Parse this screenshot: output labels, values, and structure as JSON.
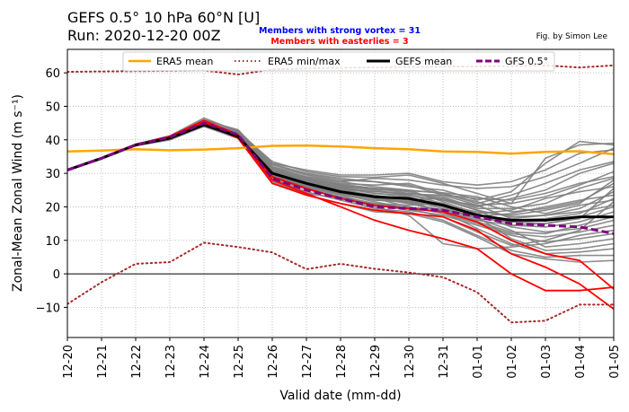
{
  "title_line1": "GEFS 0.5°  10 hPa 60°N [U]",
  "title_line2": "Run: 2020-12-20 00Z",
  "note_strong_vortex": "Members with strong vortex = 31",
  "note_easterlies": "Members with easterlies = 3",
  "credit": "Fig. by Simon Lee",
  "colors": {
    "era5_mean": "#FFA500",
    "era5_minmax": "#A52A2A",
    "gefs_mean": "#000000",
    "gfs": "#800080",
    "members": "#808080",
    "easterly_members": "#FF0000",
    "note_blue": "#0000FF",
    "note_red": "#FF0000"
  },
  "chart_data": {
    "type": "line",
    "xlabel": "Valid date (mm-dd)",
    "ylabel": "Zonal-Mean Zonal Wind (m s⁻¹)",
    "categories": [
      "12-20",
      "12-21",
      "12-22",
      "12-23",
      "12-24",
      "12-25",
      "12-26",
      "12-27",
      "12-28",
      "12-29",
      "12-30",
      "12-31",
      "01-01",
      "01-02",
      "01-03",
      "01-04",
      "01-05"
    ],
    "yticks": [
      -10,
      0,
      10,
      20,
      30,
      40,
      50,
      60
    ],
    "ylim": [
      -19,
      67
    ],
    "grid": true,
    "zero_line": true,
    "legend_position": "top",
    "legend": [
      {
        "label": "ERA5 mean",
        "style": "solid-orange"
      },
      {
        "label": "ERA5 min/max",
        "style": "dotted-brown"
      },
      {
        "label": "GEFS mean",
        "style": "solid-black-thick"
      },
      {
        "label": "GFS 0.5°",
        "style": "dashed-purple"
      }
    ],
    "series": [
      {
        "name": "ERA5 mean",
        "values": [
          36.5,
          36.8,
          37.2,
          36.9,
          37.1,
          37.5,
          38.2,
          38.3,
          38.0,
          37.5,
          37.2,
          36.5,
          36.4,
          35.9,
          36.4,
          36.6,
          35.7
        ]
      },
      {
        "name": "ERA5 min/max",
        "values": [
          60.3,
          60.4,
          60.5,
          60.6,
          60.7,
          59.5,
          61.0,
          61.3,
          61.5,
          61.6,
          61.7,
          61.8,
          61.9,
          62.0,
          62.2,
          61.6,
          62.2
        ]
      },
      {
        "name": "ERA5 min/max",
        "values": [
          -9.0,
          -2.5,
          3.0,
          3.5,
          9.3,
          8.0,
          6.4,
          1.4,
          3.0,
          1.5,
          0.4,
          -1.0,
          -5.5,
          -14.5,
          -14.0,
          -9.2,
          -9.2
        ]
      },
      {
        "name": "GEFS mean",
        "values": [
          31.0,
          34.5,
          38.5,
          40.5,
          44.5,
          41.0,
          30.0,
          27.0,
          24.5,
          23.0,
          22.5,
          20.5,
          17.5,
          16.0,
          16.0,
          17.0,
          17.0
        ]
      },
      {
        "name": "GFS 0.5°",
        "values": [
          31.0,
          34.5,
          38.5,
          40.8,
          45.0,
          41.5,
          28.5,
          25.0,
          22.5,
          20.0,
          19.5,
          19.0,
          17.0,
          15.0,
          14.5,
          14.0,
          12.0
        ]
      }
    ],
    "members": [
      [
        31.2,
        34.6,
        38.4,
        40.9,
        45.4,
        42.4,
        33.5,
        30.5,
        29.0,
        28.8,
        29.5,
        27.0,
        24.0,
        21.0,
        34.5,
        38.5,
        39.0
      ],
      [
        31.0,
        34.4,
        38.5,
        40.2,
        44.6,
        41.2,
        32.5,
        29.8,
        28.0,
        27.5,
        26.0,
        25.0,
        22.0,
        24.5,
        33.0,
        39.5,
        38.5
      ],
      [
        31.1,
        34.5,
        38.6,
        40.6,
        45.1,
        41.8,
        31.5,
        29.0,
        27.5,
        28.5,
        28.0,
        26.5,
        25.5,
        26.0,
        29.0,
        33.0,
        37.5
      ],
      [
        30.9,
        34.3,
        38.2,
        40.0,
        44.0,
        40.8,
        30.5,
        28.5,
        26.5,
        25.5,
        25.0,
        24.0,
        21.0,
        23.5,
        27.0,
        31.0,
        33.5
      ],
      [
        31.0,
        34.5,
        38.7,
        41.2,
        46.5,
        42.5,
        31.0,
        27.5,
        26.0,
        25.5,
        24.0,
        22.5,
        20.0,
        22.5,
        25.0,
        30.0,
        33.0
      ],
      [
        31.1,
        34.6,
        38.5,
        40.8,
        45.0,
        41.0,
        30.0,
        28.0,
        25.5,
        24.0,
        23.5,
        22.0,
        20.5,
        21.0,
        23.0,
        26.5,
        30.5
      ],
      [
        31.0,
        34.4,
        38.3,
        40.3,
        44.3,
        40.5,
        29.5,
        27.0,
        25.5,
        24.5,
        24.0,
        23.0,
        19.5,
        19.5,
        21.0,
        25.5,
        28.5
      ],
      [
        30.9,
        34.5,
        38.4,
        40.5,
        44.8,
        41.6,
        29.0,
        26.0,
        24.0,
        22.0,
        21.5,
        20.5,
        18.5,
        17.5,
        19.0,
        21.0,
        28.0
      ],
      [
        31.0,
        34.5,
        38.6,
        41.0,
        45.8,
        43.0,
        31.8,
        28.8,
        27.0,
        26.5,
        27.0,
        24.0,
        21.5,
        18.5,
        19.5,
        21.5,
        27.0
      ],
      [
        31.1,
        34.6,
        38.5,
        40.7,
        44.9,
        40.6,
        28.5,
        26.5,
        25.0,
        23.0,
        22.0,
        22.5,
        19.0,
        17.0,
        17.5,
        19.5,
        24.5
      ],
      [
        31.0,
        34.5,
        38.4,
        40.4,
        44.5,
        41.3,
        28.0,
        25.5,
        23.0,
        21.0,
        20.5,
        21.0,
        17.5,
        16.0,
        16.5,
        18.0,
        22.5
      ],
      [
        30.9,
        34.4,
        38.3,
        40.1,
        44.1,
        40.9,
        29.8,
        27.8,
        26.0,
        24.0,
        23.0,
        20.0,
        16.5,
        15.5,
        15.0,
        17.0,
        20.0
      ],
      [
        31.0,
        34.5,
        38.5,
        40.6,
        44.7,
        41.4,
        30.8,
        28.2,
        25.8,
        22.5,
        21.0,
        19.0,
        16.0,
        14.5,
        14.0,
        15.5,
        18.5
      ],
      [
        31.1,
        34.5,
        38.6,
        40.9,
        45.2,
        42.0,
        32.0,
        29.5,
        27.5,
        26.0,
        25.0,
        21.5,
        18.0,
        14.0,
        12.5,
        13.5,
        16.0
      ],
      [
        31.0,
        34.5,
        38.4,
        40.5,
        44.6,
        41.1,
        29.2,
        26.8,
        24.5,
        22.5,
        20.0,
        18.0,
        15.0,
        12.0,
        11.0,
        12.5,
        14.5
      ],
      [
        30.9,
        34.4,
        38.2,
        40.2,
        44.2,
        40.7,
        28.8,
        25.8,
        23.5,
        20.5,
        19.0,
        17.5,
        14.5,
        11.5,
        9.5,
        10.5,
        12.0
      ],
      [
        31.0,
        34.5,
        38.5,
        40.6,
        44.8,
        41.5,
        30.2,
        27.2,
        25.0,
        23.5,
        22.0,
        19.5,
        16.5,
        13.0,
        8.0,
        9.0,
        10.5
      ],
      [
        31.1,
        34.6,
        38.6,
        40.8,
        45.0,
        41.7,
        31.2,
        28.6,
        26.5,
        25.0,
        23.5,
        21.0,
        17.0,
        10.5,
        7.0,
        7.5,
        9.0
      ],
      [
        31.0,
        34.5,
        38.5,
        40.5,
        44.6,
        41.2,
        29.6,
        27.4,
        24.8,
        22.8,
        21.5,
        18.5,
        13.5,
        9.0,
        6.0,
        6.5,
        7.5
      ],
      [
        30.9,
        34.4,
        38.3,
        40.3,
        44.3,
        40.8,
        28.2,
        24.5,
        22.0,
        19.5,
        18.5,
        16.0,
        11.5,
        7.0,
        5.0,
        5.5,
        5.5
      ],
      [
        31.0,
        34.5,
        38.4,
        40.4,
        44.4,
        40.9,
        27.5,
        23.5,
        21.0,
        18.5,
        18.0,
        15.5,
        11.0,
        6.0,
        4.5,
        3.5,
        4.0
      ],
      [
        31.1,
        34.5,
        38.6,
        40.9,
        45.3,
        42.2,
        32.8,
        30.0,
        28.5,
        27.5,
        26.5,
        23.5,
        20.5,
        16.5,
        17.5,
        18.5,
        20.5
      ],
      [
        31.0,
        34.5,
        38.5,
        40.7,
        45.0,
        41.9,
        31.0,
        28.4,
        26.8,
        25.5,
        24.5,
        22.0,
        19.0,
        14.5,
        15.0,
        16.5,
        25.5
      ],
      [
        31.0,
        34.4,
        38.4,
        40.4,
        44.5,
        41.0,
        29.4,
        26.2,
        23.8,
        21.5,
        19.5,
        17.0,
        12.5,
        8.5,
        10.0,
        13.0,
        21.5
      ],
      [
        30.9,
        34.4,
        38.3,
        40.2,
        44.0,
        40.4,
        27.0,
        24.0,
        22.5,
        20.0,
        17.5,
        9.0,
        7.5,
        8.0,
        9.0,
        11.5,
        13.0
      ],
      [
        31.0,
        34.5,
        38.5,
        40.6,
        44.7,
        41.3,
        30.0,
        27.6,
        25.3,
        23.0,
        21.0,
        18.8,
        15.5,
        12.5,
        12.0,
        14.5,
        17.0
      ],
      [
        31.1,
        34.6,
        38.7,
        41.1,
        46.0,
        42.8,
        33.0,
        31.0,
        29.5,
        29.5,
        30.0,
        27.5,
        26.5,
        27.5,
        31.0,
        36.0,
        37.0
      ],
      [
        31.0,
        34.5,
        38.4,
        40.5,
        44.6,
        41.1,
        29.0,
        26.4,
        24.2,
        22.0,
        21.5,
        20.2,
        18.0,
        19.0,
        22.5,
        24.5,
        26.0
      ],
      [
        30.9,
        34.4,
        38.3,
        40.3,
        44.2,
        40.6,
        28.6,
        25.2,
        22.8,
        20.8,
        19.8,
        19.2,
        17.2,
        18.0,
        20.0,
        22.0,
        23.5
      ],
      [
        31.0,
        34.5,
        38.5,
        40.7,
        44.9,
        41.6,
        30.4,
        27.9,
        25.9,
        24.6,
        23.8,
        23.5,
        22.5,
        22.0,
        24.0,
        27.0,
        29.0
      ],
      [
        31.0,
        34.5,
        38.6,
        40.8,
        45.1,
        41.8,
        30.6,
        28.1,
        26.2,
        25.2,
        24.8,
        24.2,
        23.0,
        20.0,
        18.0,
        20.5,
        22.0
      ]
    ],
    "easterly_members": [
      [
        31.0,
        34.6,
        38.5,
        40.8,
        45.5,
        41.0,
        28.0,
        24.0,
        20.0,
        16.0,
        13.0,
        10.5,
        7.5,
        0.0,
        -5.0,
        -5.0,
        -4.0
      ],
      [
        31.1,
        34.5,
        38.4,
        40.6,
        45.0,
        40.5,
        27.0,
        23.5,
        21.0,
        19.0,
        18.0,
        17.0,
        13.0,
        6.0,
        2.0,
        -3.0,
        -10.5
      ],
      [
        30.9,
        34.4,
        38.6,
        41.0,
        45.8,
        41.5,
        29.0,
        25.5,
        22.5,
        20.5,
        19.5,
        18.5,
        15.5,
        10.0,
        6.0,
        4.0,
        -4.5
      ]
    ]
  }
}
